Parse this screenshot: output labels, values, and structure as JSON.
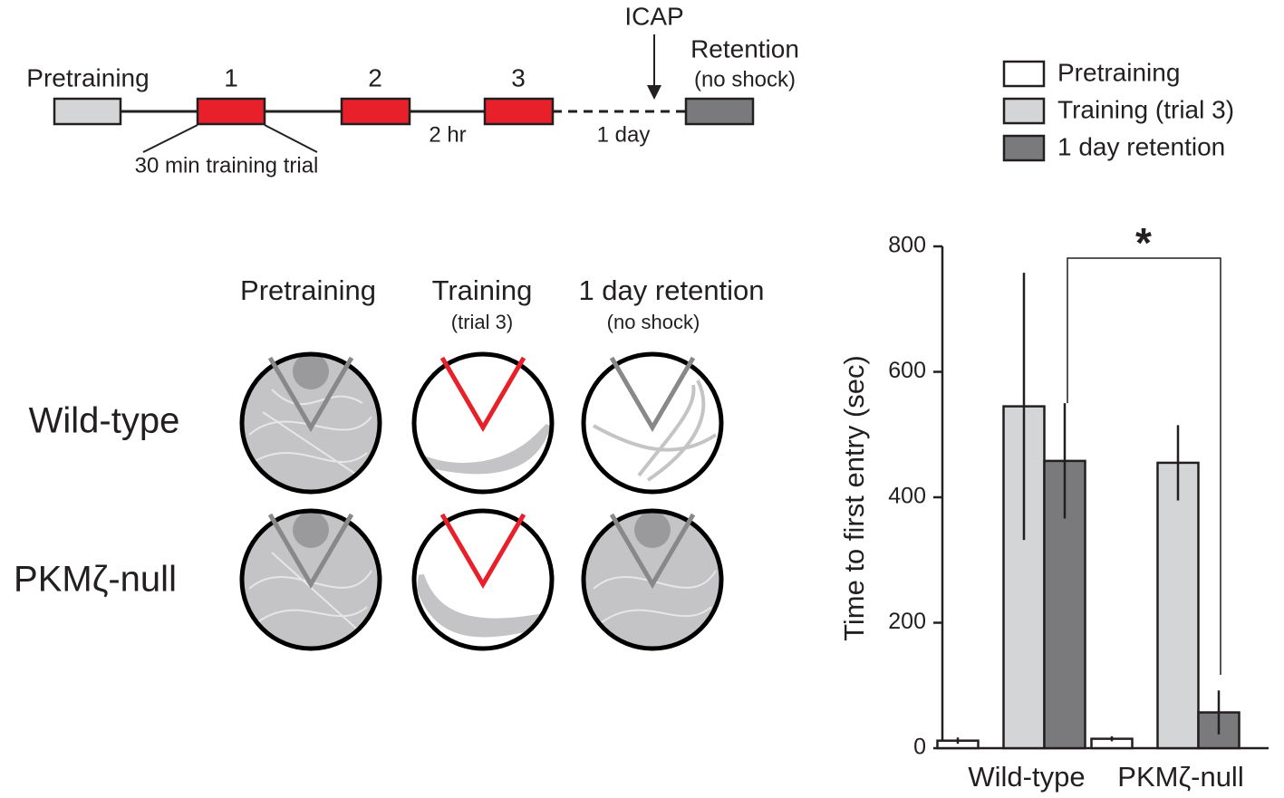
{
  "timeline": {
    "pretraining": "Pretraining",
    "trial_1": "1",
    "trial_2": "2",
    "trial_3": "3",
    "icap": "ICAP",
    "retention": "Retention",
    "retention_note": "(no shock)",
    "trial_note": "30 min training trial",
    "interval": "2 hr",
    "delay": "1 day"
  },
  "arenas": {
    "columns": [
      "Pretraining",
      "Training",
      "1 day retention"
    ],
    "column_notes": [
      null,
      "(trial 3)",
      "(no shock)"
    ],
    "rows": [
      "Wild-type",
      "PKMζ-null"
    ]
  },
  "chart_data": {
    "type": "bar",
    "ylabel": "Time to first entry (sec)",
    "annotation": "*",
    "categories": [
      "Wild-type",
      "PKMζ-null"
    ],
    "series": [
      {
        "name": "Pretraining",
        "color": "#ffffff",
        "values": [
          12,
          15
        ],
        "errors": [
          5,
          4
        ]
      },
      {
        "name": "Training (trial 3)",
        "color": "#d4d5d7",
        "values": [
          545,
          455
        ],
        "errors": [
          213,
          60
        ]
      },
      {
        "name": "1 day retention",
        "color": "#7a7a7c",
        "values": [
          458,
          57
        ],
        "errors": [
          92,
          35
        ]
      }
    ],
    "ylim": [
      0,
      800
    ],
    "yticks": [
      0,
      200,
      400,
      600,
      800
    ],
    "legend": "top-right"
  }
}
